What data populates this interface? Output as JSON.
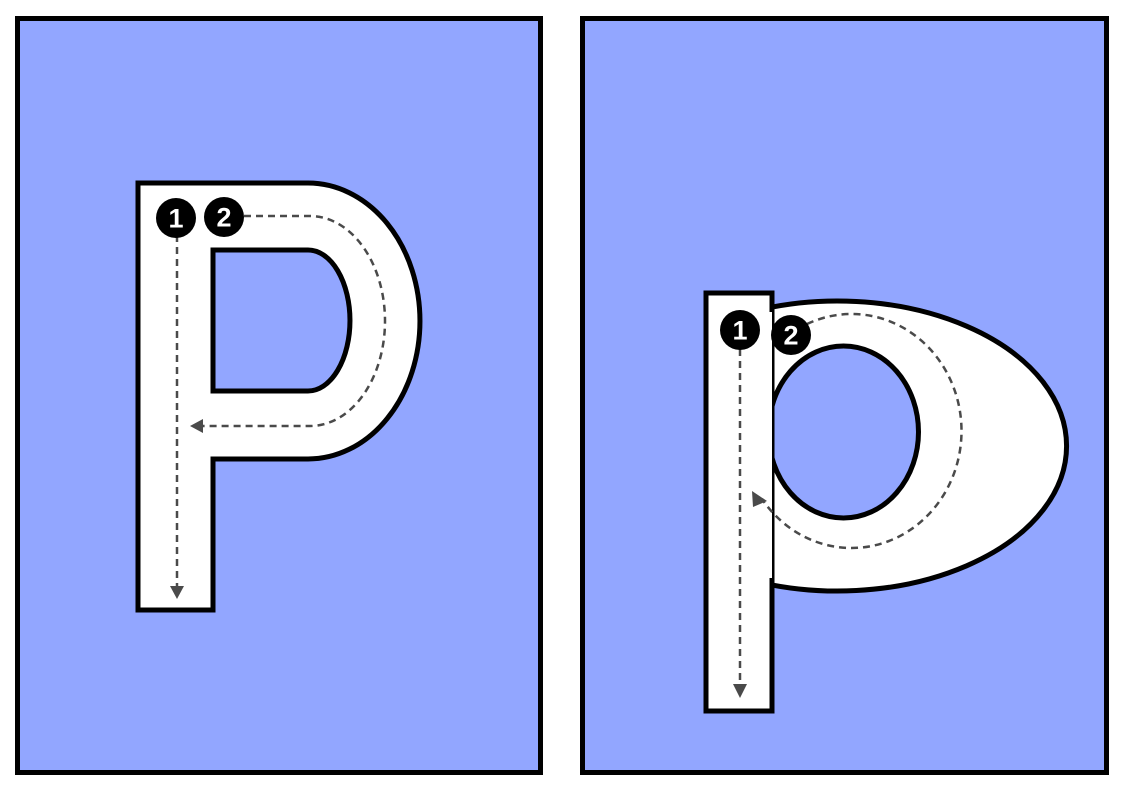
{
  "colors": {
    "card_background": "#92a6ff",
    "letter_fill": "#ffffff",
    "outline": "#000000",
    "guide_stroke": "#4a4a4a",
    "number_badge": "#000000",
    "number_text": "#ffffff"
  },
  "cards": [
    {
      "letter": "P",
      "case": "uppercase",
      "strokes": [
        {
          "number": "1",
          "direction": "down"
        },
        {
          "number": "2",
          "direction": "right-around-left"
        }
      ]
    },
    {
      "letter": "p",
      "case": "lowercase",
      "strokes": [
        {
          "number": "1",
          "direction": "down"
        },
        {
          "number": "2",
          "direction": "around"
        }
      ]
    }
  ]
}
